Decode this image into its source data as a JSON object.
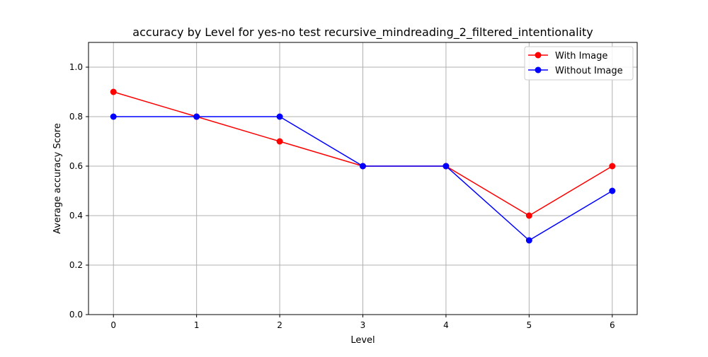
{
  "chart_data": {
    "type": "line",
    "title": "accuracy by Level for yes-no test recursive_mindreading_2_filtered_intentionality",
    "xlabel": "Level",
    "ylabel": "Average accuracy Score",
    "x": [
      0,
      1,
      2,
      3,
      4,
      5,
      6
    ],
    "xlim": [
      -0.3,
      6.3
    ],
    "ylim": [
      0.0,
      1.1
    ],
    "x_ticks": [
      "0",
      "1",
      "2",
      "3",
      "4",
      "5",
      "6"
    ],
    "y_ticks": [
      "0.0",
      "0.2",
      "0.4",
      "0.6",
      "0.8",
      "1.0"
    ],
    "grid": true,
    "legend_position": "top-right",
    "series": [
      {
        "name": "With Image",
        "color": "#ff0000",
        "values": [
          0.9,
          0.8,
          0.7,
          0.6,
          0.6,
          0.4,
          0.6
        ]
      },
      {
        "name": "Without Image",
        "color": "#0000ff",
        "values": [
          0.8,
          0.8,
          0.8,
          0.6,
          0.6,
          0.3,
          0.5
        ]
      }
    ]
  }
}
